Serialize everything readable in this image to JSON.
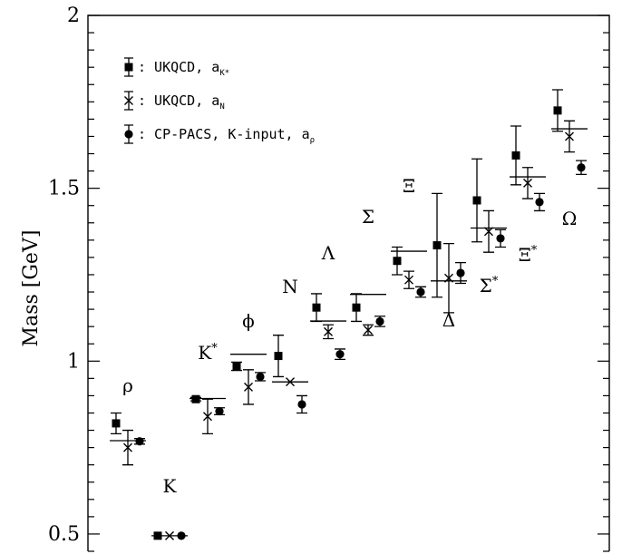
{
  "chart_data": {
    "type": "scatter",
    "title": "",
    "xlabel": "",
    "ylabel": "Mass [GeV]",
    "ylim": [
      0.45,
      2.0
    ],
    "yticks": [
      0.5,
      1,
      1.5,
      2
    ],
    "ytick_labels": [
      "0.5",
      "1",
      "1.5",
      "2"
    ],
    "grid": false,
    "legend_position": "top-left",
    "legend": [
      {
        "marker": "square",
        "label": "UKQCD, a",
        "sub": "K*"
      },
      {
        "marker": "cross",
        "label": "UKQCD, a",
        "sub": "N"
      },
      {
        "marker": "circle",
        "label": "CP-PACS, K-input, a",
        "sub": "ρ"
      }
    ],
    "particles": [
      {
        "label": "ρ",
        "exp": 0.77,
        "series": {
          "square": {
            "y": 0.82,
            "err": 0.03
          },
          "cross": {
            "y": 0.75,
            "err": 0.05
          },
          "circle": {
            "y": 0.768,
            "err": 0.008
          }
        }
      },
      {
        "label": "K",
        "exp": 0.495,
        "series": {
          "square": {
            "y": 0.495,
            "err": 0
          },
          "cross": {
            "y": 0.495,
            "err": 0
          },
          "circle": {
            "y": 0.495,
            "err": 0
          }
        }
      },
      {
        "label": "K*",
        "exp": 0.892,
        "series": {
          "square": {
            "y": 0.89,
            "err": 0.005
          },
          "cross": {
            "y": 0.84,
            "err": 0.05
          },
          "circle": {
            "y": 0.855,
            "err": 0.01
          }
        }
      },
      {
        "label": "ϕ",
        "exp": 1.02,
        "series": {
          "square": {
            "y": 0.985,
            "err": 0.012
          },
          "cross": {
            "y": 0.925,
            "err": 0.05
          },
          "circle": {
            "y": 0.955,
            "err": 0.012
          }
        }
      },
      {
        "label": "N",
        "exp": 0.94,
        "series": {
          "square": {
            "y": 1.015,
            "err": 0.06
          },
          "cross": {
            "y": 0.94,
            "err": 0
          },
          "circle": {
            "y": 0.875,
            "err": 0.025
          }
        }
      },
      {
        "label": "Λ",
        "exp": 1.116,
        "series": {
          "square": {
            "y": 1.155,
            "err": 0.04
          },
          "cross": {
            "y": 1.085,
            "err": 0.02
          },
          "circle": {
            "y": 1.02,
            "err": 0.015
          }
        }
      },
      {
        "label": "Σ",
        "exp": 1.193,
        "series": {
          "square": {
            "y": 1.155,
            "err": 0.04
          },
          "cross": {
            "y": 1.09,
            "err": 0.015
          },
          "circle": {
            "y": 1.115,
            "err": 0.015
          }
        }
      },
      {
        "label": "Ξ",
        "exp": 1.318,
        "series": {
          "square": {
            "y": 1.29,
            "err": 0.04
          },
          "cross": {
            "y": 1.235,
            "err": 0.025
          },
          "circle": {
            "y": 1.2,
            "err": 0.015
          }
        }
      },
      {
        "label": "Δ",
        "exp": 1.232,
        "series": {
          "square": {
            "y": 1.335,
            "err": 0.15
          },
          "cross": {
            "y": 1.24,
            "err": 0.1
          },
          "circle": {
            "y": 1.255,
            "err": 0.03
          }
        }
      },
      {
        "label": "Σ*",
        "exp": 1.385,
        "series": {
          "square": {
            "y": 1.465,
            "err": 0.12
          },
          "cross": {
            "y": 1.375,
            "err": 0.06
          },
          "circle": {
            "y": 1.355,
            "err": 0.025
          }
        }
      },
      {
        "label": "Ξ*",
        "exp": 1.533,
        "series": {
          "square": {
            "y": 1.595,
            "err": 0.085
          },
          "cross": {
            "y": 1.515,
            "err": 0.045
          },
          "circle": {
            "y": 1.46,
            "err": 0.025
          }
        }
      },
      {
        "label": "Ω",
        "exp": 1.672,
        "series": {
          "square": {
            "y": 1.725,
            "err": 0.06
          },
          "cross": {
            "y": 1.65,
            "err": 0.045
          },
          "circle": {
            "y": 1.56,
            "err": 0.02
          }
        }
      }
    ]
  }
}
